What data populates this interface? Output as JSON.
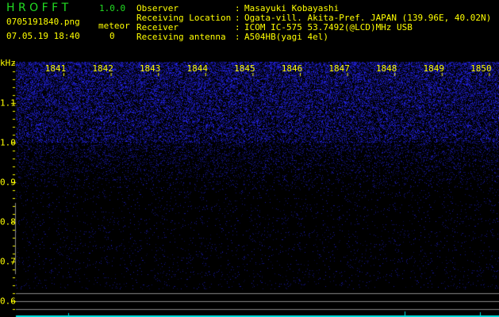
{
  "app": {
    "name": "H R O F F T",
    "version": "1.0.0"
  },
  "file": {
    "name": "0705191840.png",
    "datetime": "07.05.19 18:40"
  },
  "meteor": {
    "label": "meteor",
    "count": "0"
  },
  "info": [
    {
      "label": "Observer",
      "value": "Masayuki Kobayashi"
    },
    {
      "label": "Receiving Location",
      "value": "Ogata-vill. Akita-Pref. JAPAN (139.96E, 40.02N)"
    },
    {
      "label": "Receiver",
      "value": "ICOM IC-575 53.7492(@LCD)MHz USB"
    },
    {
      "label": "Receiving antenna",
      "value": "A504HB(yagi 4el)"
    }
  ],
  "axis": {
    "y_unit": "kHz",
    "y_ticks": [
      "1.1",
      "1.0",
      "0.9",
      "0.8",
      "0.7",
      "0.6"
    ],
    "x_ticks": [
      "1841",
      "1842",
      "1843",
      "1844",
      "1845",
      "1846",
      "1847",
      "1848",
      "1849",
      "1850"
    ]
  },
  "colors": {
    "text": "#ffff00",
    "logo": "#22dd22",
    "signal": "#2020ff",
    "baseline": "#00e0e0",
    "guide": "#888888"
  }
}
